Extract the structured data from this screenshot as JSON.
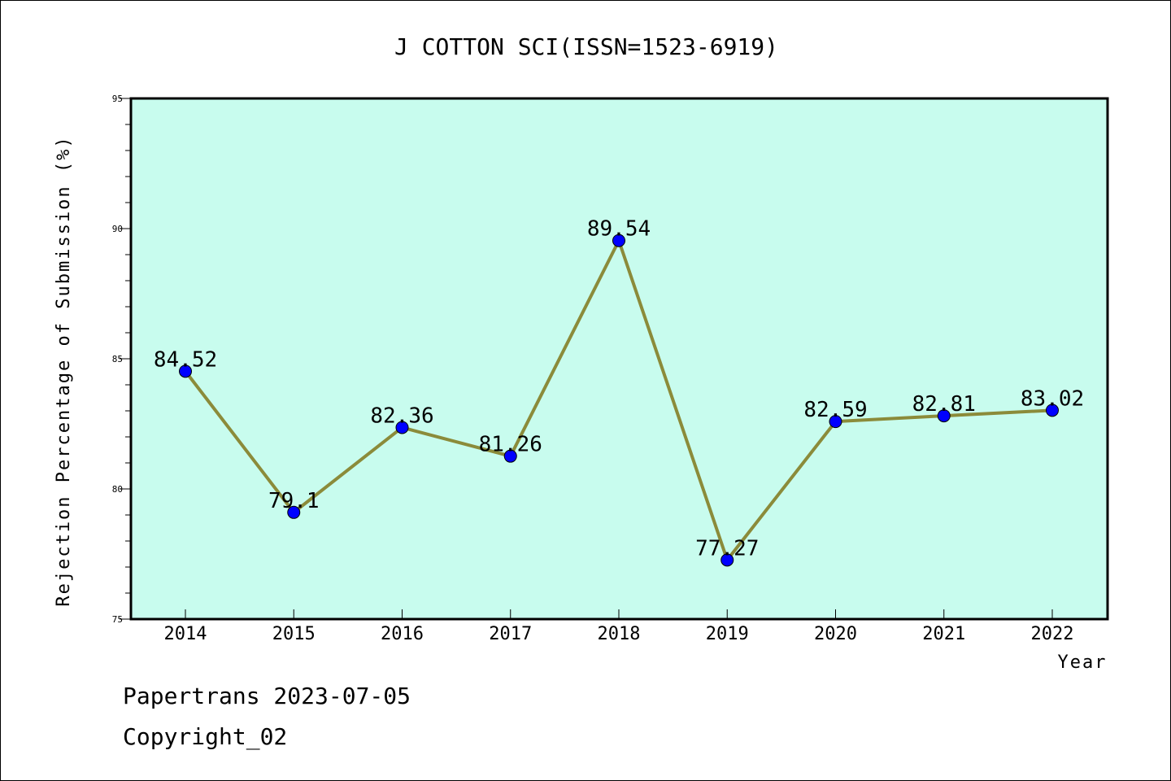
{
  "chart_data": {
    "type": "line",
    "title": "J COTTON SCI(ISSN=1523-6919)",
    "xlabel": "Year",
    "ylabel": "Rejection Percentage of Submission (%)",
    "categories": [
      "2014",
      "2015",
      "2016",
      "2017",
      "2018",
      "2019",
      "2020",
      "2021",
      "2022"
    ],
    "values": [
      84.52,
      79.1,
      82.36,
      81.26,
      89.54,
      77.27,
      82.59,
      82.81,
      83.02
    ],
    "data_labels": [
      "84.52",
      "79.1",
      "82.36",
      "81.26",
      "89.54",
      "77.27",
      "82.59",
      "82.81",
      "83.02"
    ],
    "ylim": [
      75,
      95
    ],
    "yticks": [
      "75",
      "80",
      "85",
      "90",
      "95"
    ],
    "grid": false,
    "colors": {
      "plot_background": "#c8fcee",
      "line": "#8b8b3a",
      "marker": "#0000ff"
    }
  },
  "footer": {
    "line1": "Papertrans 2023-07-05",
    "line2": "Copyright_02"
  }
}
